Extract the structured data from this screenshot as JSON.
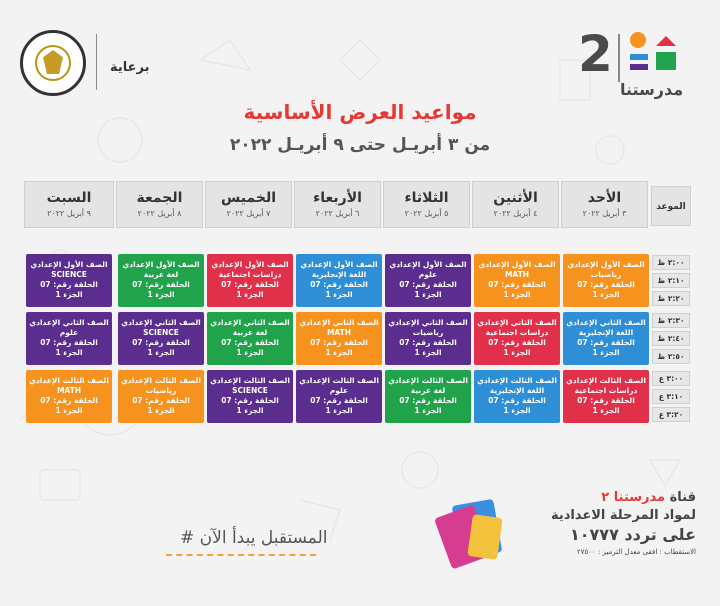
{
  "brand": {
    "number": "2",
    "name": "مدرستنا"
  },
  "sponsor": {
    "label": "برعاية"
  },
  "title": "مواعيد العرض الأساسية",
  "subtitle": "من ٣ أبريـل حتى ٩ أبريـل ٢٠٢٢",
  "time_header": "الموعد",
  "days": [
    {
      "name": "الأحد",
      "date": "٣ أبريل ٢٠٢٢"
    },
    {
      "name": "الأثنين",
      "date": "٤ أبريل ٢٠٢٢"
    },
    {
      "name": "الثلاثاء",
      "date": "٥ أبريل ٢٠٢٢"
    },
    {
      "name": "الأربعاء",
      "date": "٦ أبريل ٢٠٢٢"
    },
    {
      "name": "الخميس",
      "date": "٧ أبريل ٢٠٢٢"
    },
    {
      "name": "الجمعة",
      "date": "٨ أبريل ٢٠٢٢"
    },
    {
      "name": "السبت",
      "date": "٩ أبريل ٢٠٢٢"
    }
  ],
  "slots": [
    "٢:٠٠ ظ",
    "٢:١٠ ظ",
    "٢:٢٠ ظ",
    "٢:٣٠ ظ",
    "٢:٤٠ ظ",
    "٢:٥٠ ظ",
    "٣:٠٠ ع",
    "٣:١٠ ع",
    "٣:٢٠ ع"
  ],
  "colors": {
    "orange": "#f5931e",
    "purple": "#5b2d8e",
    "blue": "#2e8fd6",
    "green": "#20a34a",
    "red": "#e0304a"
  },
  "rows": [
    [
      {
        "grade": "الصف الأول الإعدادي",
        "subject": "رياضيات",
        "ep": "الحلقة رقم: 07",
        "part": "الجزء 1",
        "color": "#f5931e"
      },
      {
        "grade": "الصف الأول الإعدادي",
        "subject": "MATH",
        "ep": "الحلقة رقم: 07",
        "part": "الجزء 1",
        "color": "#f5931e"
      },
      {
        "grade": "الصف الأول الإعدادي",
        "subject": "علوم",
        "ep": "الحلقة رقم: 07",
        "part": "الجزء 1",
        "color": "#5b2d8e"
      },
      {
        "grade": "الصف الأول الإعدادي",
        "subject": "اللغة الإنجليزية",
        "ep": "الحلقة رقم: 07",
        "part": "الجزء 1",
        "color": "#2e8fd6"
      },
      {
        "grade": "الصف الأول الإعدادي",
        "subject": "دراسات اجتماعية",
        "ep": "الحلقة رقم: 07",
        "part": "الجزء 1",
        "color": "#e0304a"
      },
      {
        "grade": "الصف الأول الإعدادي",
        "subject": "لغة عربية",
        "ep": "الحلقة رقم: 07",
        "part": "الجزء 1",
        "color": "#20a34a"
      },
      {
        "grade": "الصف الأول الإعدادي",
        "subject": "SCIENCE",
        "ep": "الحلقة رقم: 07",
        "part": "الجزء 1",
        "color": "#5b2d8e"
      }
    ],
    [
      {
        "grade": "الصف الثاني الإعدادي",
        "subject": "اللغة الإنجليزية",
        "ep": "الحلقة رقم: 07",
        "part": "الجزء 1",
        "color": "#2e8fd6"
      },
      {
        "grade": "الصف الثاني الإعدادي",
        "subject": "دراسات اجتماعية",
        "ep": "الحلقة رقم: 07",
        "part": "الجزء 1",
        "color": "#e0304a"
      },
      {
        "grade": "الصف الثاني الإعدادي",
        "subject": "رياضيات",
        "ep": "الحلقة رقم: 07",
        "part": "الجزء 1",
        "color": "#5b2d8e"
      },
      {
        "grade": "الصف الثاني الإعدادي",
        "subject": "MATH",
        "ep": "الحلقة رقم: 07",
        "part": "الجزء 1",
        "color": "#f5931e"
      },
      {
        "grade": "الصف الثاني الإعدادي",
        "subject": "لغة عربية",
        "ep": "الحلقة رقم: 07",
        "part": "الجزء 1",
        "color": "#20a34a"
      },
      {
        "grade": "الصف الثاني الإعدادي",
        "subject": "SCIENCE",
        "ep": "الحلقة رقم: 07",
        "part": "الجزء 1",
        "color": "#5b2d8e"
      },
      {
        "grade": "الصف الثاني الإعدادي",
        "subject": "علوم",
        "ep": "الحلقة رقم: 07",
        "part": "الجزء 1",
        "color": "#5b2d8e"
      }
    ],
    [
      {
        "grade": "الصف الثالث الإعدادي",
        "subject": "دراسات اجتماعية",
        "ep": "الحلقة رقم: 07",
        "part": "الجزء 1",
        "color": "#e0304a"
      },
      {
        "grade": "الصف الثالث الإعدادي",
        "subject": "اللغة الإنجليزية",
        "ep": "الحلقة رقم: 07",
        "part": "الجزء 1",
        "color": "#2e8fd6"
      },
      {
        "grade": "الصف الثالث الإعدادي",
        "subject": "لغة عربية",
        "ep": "الحلقة رقم: 07",
        "part": "الجزء 1",
        "color": "#20a34a"
      },
      {
        "grade": "الصف الثالث الإعدادي",
        "subject": "علوم",
        "ep": "الحلقة رقم: 07",
        "part": "الجزء 1",
        "color": "#5b2d8e"
      },
      {
        "grade": "الصف الثالث الإعدادي",
        "subject": "SCIENCE",
        "ep": "الحلقة رقم: 07",
        "part": "الجزء 1",
        "color": "#5b2d8e"
      },
      {
        "grade": "الصف الثالث الإعدادي",
        "subject": "رياضيات",
        "ep": "الحلقة رقم: 07",
        "part": "الجزء 1",
        "color": "#f5931e"
      },
      {
        "grade": "الصف الثالث الإعدادي",
        "subject": "MATH",
        "ep": "الحلقة رقم: 07",
        "part": "الجزء 1",
        "color": "#f5931e"
      }
    ]
  ],
  "footer": {
    "tagline": "# المستقبل يبدأ الآن",
    "channel_prefix": "قناة",
    "channel_name": "مدرستنا ٢",
    "line2": "لمواد المرحلة الاعدادية",
    "line3": "على تردد ١٠٧٧٧",
    "line4": "الاستقطاب : افقى معدل الترميز : ٢٧٥٠٠"
  }
}
